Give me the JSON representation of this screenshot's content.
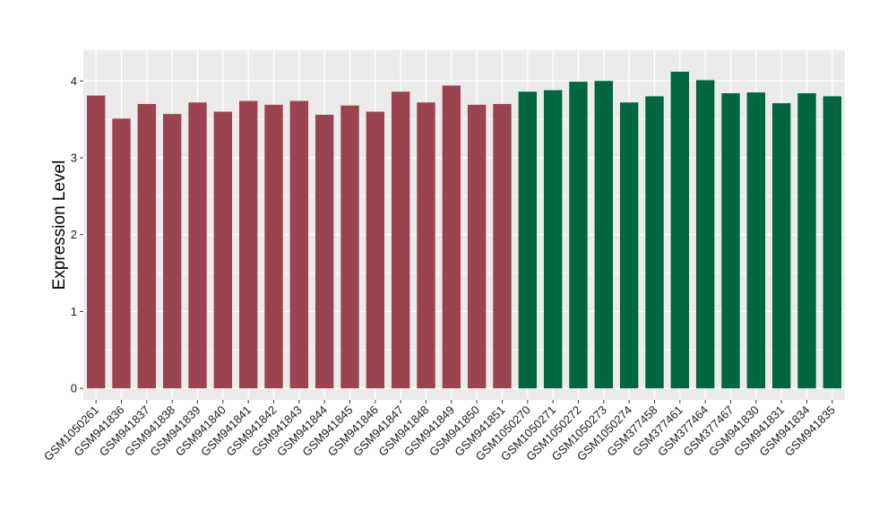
{
  "chart_data": {
    "type": "bar",
    "title": "",
    "xlabel": "",
    "ylabel": "Expression Level",
    "ylim": [
      -0.15,
      4.4
    ],
    "yticks": [
      0,
      1,
      2,
      3,
      4
    ],
    "grid": true,
    "legend": "none",
    "background": "#ebebeb",
    "gridline_color": "#ffffff",
    "categories": [
      "GSM1050261",
      "GSM941836",
      "GSM941837",
      "GSM941838",
      "GSM941839",
      "GSM941840",
      "GSM941841",
      "GSM941842",
      "GSM941843",
      "GSM941844",
      "GSM941845",
      "GSM941846",
      "GSM941847",
      "GSM941848",
      "GSM941849",
      "GSM941850",
      "GSM941851",
      "GSM1050270",
      "GSM1050271",
      "GSM1050272",
      "GSM1050273",
      "GSM1050274",
      "GSM377458",
      "GSM377461",
      "GSM377464",
      "GSM377467",
      "GSM941830",
      "GSM941831",
      "GSM941834",
      "GSM941835"
    ],
    "values": [
      3.81,
      3.51,
      3.7,
      3.57,
      3.72,
      3.6,
      3.74,
      3.69,
      3.74,
      3.56,
      3.68,
      3.6,
      3.86,
      3.72,
      3.94,
      3.69,
      3.7,
      3.86,
      3.88,
      3.99,
      4.0,
      3.72,
      3.8,
      4.12,
      4.01,
      3.84,
      3.85,
      3.71,
      3.84,
      3.8
    ],
    "colors": [
      "#9b4350",
      "#9b4350",
      "#9b4350",
      "#9b4350",
      "#9b4350",
      "#9b4350",
      "#9b4350",
      "#9b4350",
      "#9b4350",
      "#9b4350",
      "#9b4350",
      "#9b4350",
      "#9b4350",
      "#9b4350",
      "#9b4350",
      "#9b4350",
      "#9b4350",
      "#006640",
      "#006640",
      "#006640",
      "#006640",
      "#006640",
      "#006640",
      "#006640",
      "#006640",
      "#006640",
      "#006640",
      "#006640",
      "#006640",
      "#006640"
    ]
  }
}
